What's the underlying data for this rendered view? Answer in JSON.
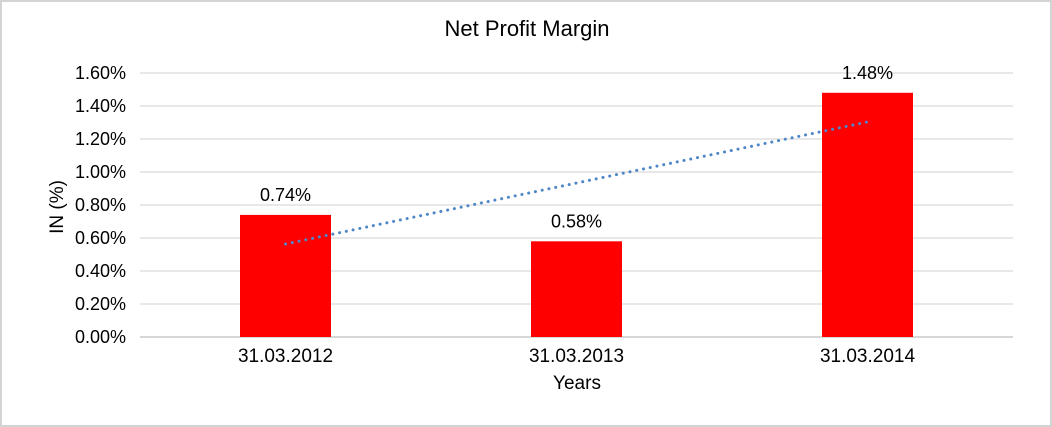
{
  "chart_data": {
    "type": "bar",
    "title": "Net Profit Margin",
    "xlabel": "Years",
    "ylabel": "IN (%)",
    "categories": [
      "31.03.2012",
      "31.03.2013",
      "31.03.2014"
    ],
    "values": [
      0.74,
      0.58,
      1.48
    ],
    "data_labels": [
      "0.74%",
      "0.58%",
      "1.48%"
    ],
    "ylim": [
      0,
      1.6
    ],
    "ytick_step": 0.2,
    "ytick_labels": [
      "0.00%",
      "0.20%",
      "0.40%",
      "0.60%",
      "0.80%",
      "1.00%",
      "1.20%",
      "1.40%",
      "1.60%"
    ],
    "grid": true,
    "legend": "none",
    "colors": {
      "bar": "#ff0000",
      "trendline": "#4e86c8",
      "gridline": "#d9d9d9",
      "axis_line": "#bfbfbf",
      "text": "#000000",
      "frame_border": "#d4d4d4"
    },
    "trendline": {
      "type": "linear",
      "style": "dotted"
    }
  }
}
